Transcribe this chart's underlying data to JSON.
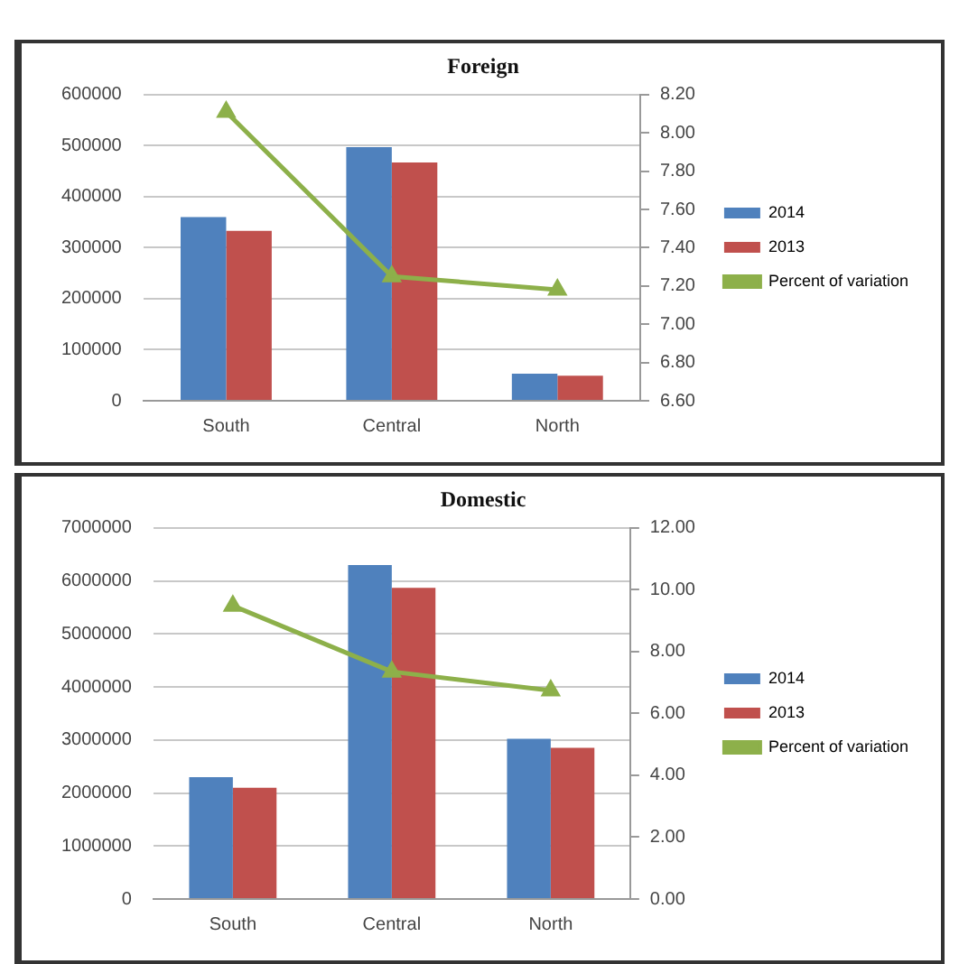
{
  "chart_data": [
    {
      "type": "bar",
      "title": "Foreign",
      "categories": [
        "South",
        "Central",
        "North"
      ],
      "series": [
        {
          "name": "2014",
          "color": "#4f81bd",
          "values": [
            360000,
            497000,
            53000
          ]
        },
        {
          "name": "2013",
          "color": "#c0504d",
          "values": [
            333000,
            467000,
            49000
          ]
        },
        {
          "name": "Percent of variation",
          "type": "line",
          "axis": "y2",
          "color": "#8db04a",
          "values": [
            8.11,
            7.25,
            7.18
          ]
        }
      ],
      "ylim": [
        0,
        600000
      ],
      "yticks": [
        0,
        100000,
        200000,
        300000,
        400000,
        500000,
        600000
      ],
      "y2lim": [
        6.6,
        8.2
      ],
      "y2ticks": [
        {
          "value": 6.6,
          "label": "6.60"
        },
        {
          "value": 6.8,
          "label": "6.80"
        },
        {
          "value": 7.0,
          "label": "7.00"
        },
        {
          "value": 7.2,
          "label": "7.20"
        },
        {
          "value": 7.4,
          "label": "7.40"
        },
        {
          "value": 7.6,
          "label": "7.60"
        },
        {
          "value": 7.8,
          "label": "7.80"
        },
        {
          "value": 8.0,
          "label": "8.00"
        },
        {
          "value": 8.2,
          "label": "8.20"
        }
      ],
      "grid": "y",
      "legend": "right",
      "marker": "triangle"
    },
    {
      "type": "bar",
      "title": "Domestic",
      "categories": [
        "South",
        "Central",
        "North"
      ],
      "series": [
        {
          "name": "2014",
          "color": "#4f81bd",
          "values": [
            2300000,
            6300000,
            3020000
          ]
        },
        {
          "name": "2013",
          "color": "#c0504d",
          "values": [
            2100000,
            5870000,
            2850000
          ]
        },
        {
          "name": "Percent of variation",
          "type": "line",
          "axis": "y2",
          "color": "#8db04a",
          "values": [
            9.48,
            7.35,
            6.74
          ]
        }
      ],
      "ylim": [
        0,
        7000000
      ],
      "yticks": [
        0,
        1000000,
        2000000,
        3000000,
        4000000,
        5000000,
        6000000,
        7000000
      ],
      "y2lim": [
        0,
        12
      ],
      "y2ticks": [
        {
          "value": 0,
          "label": "0.00"
        },
        {
          "value": 2,
          "label": "2.00"
        },
        {
          "value": 4,
          "label": "4.00"
        },
        {
          "value": 6,
          "label": "6.00"
        },
        {
          "value": 8,
          "label": "8.00"
        },
        {
          "value": 10,
          "label": "10.00"
        },
        {
          "value": 12,
          "label": "12.00"
        }
      ],
      "grid": "y",
      "legend": "right",
      "marker": "triangle"
    }
  ]
}
